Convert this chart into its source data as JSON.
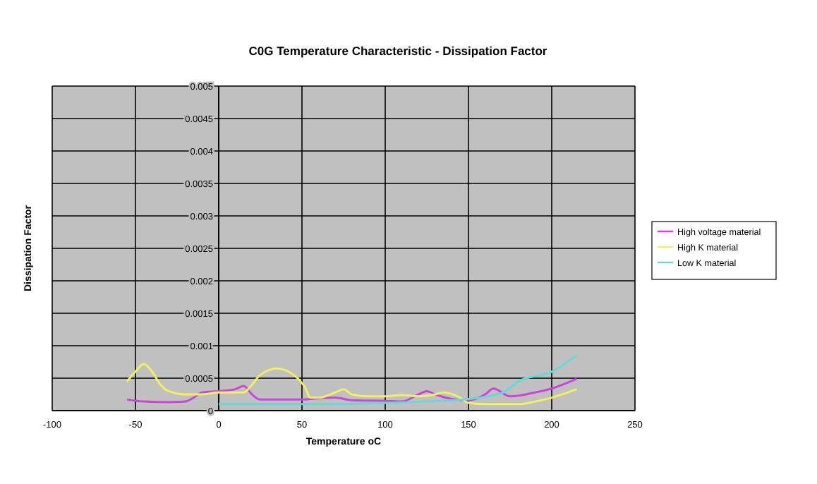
{
  "chart_data": {
    "type": "line",
    "title": "C0G Temperature Characteristic - Dissipation Factor",
    "xlabel": "Temperature oC",
    "ylabel": "Dissipation Factor",
    "xlim": [
      -100,
      250
    ],
    "xticks": [
      -100,
      -50,
      0,
      50,
      100,
      150,
      200,
      250
    ],
    "ylim": [
      0,
      0.005
    ],
    "yticks": [
      0,
      0.0005,
      0.001,
      0.0015,
      0.002,
      0.0025,
      0.003,
      0.0035,
      0.004,
      0.0045,
      0.005
    ],
    "grid": true,
    "legend": "right",
    "marker": "none",
    "line_style": "solid",
    "series": [
      {
        "name": "High voltage material",
        "color": "#cc44dd",
        "x": [
          -55,
          -45,
          -30,
          -20,
          -15,
          -10,
          0,
          10,
          15,
          20,
          25,
          35,
          50,
          60,
          70,
          80,
          100,
          110,
          120,
          125,
          130,
          140,
          150,
          160,
          165,
          175,
          190,
          200,
          215
        ],
        "values": [
          0.00017,
          0.00014,
          0.00013,
          0.00014,
          0.0002,
          0.00028,
          0.0003,
          0.00033,
          0.00038,
          0.00025,
          0.00017,
          0.00017,
          0.00017,
          0.00019,
          0.0002,
          0.00016,
          0.00015,
          0.00014,
          0.00025,
          0.0003,
          0.00025,
          0.00018,
          0.00016,
          0.00025,
          0.00034,
          0.00022,
          0.00028,
          0.00034,
          0.00049
        ]
      },
      {
        "name": "High K material",
        "color": "#f0f060",
        "x": [
          -55,
          -50,
          -45,
          -40,
          -35,
          -30,
          -20,
          -10,
          0,
          10,
          15,
          20,
          25,
          35,
          45,
          52,
          55,
          60,
          70,
          75,
          80,
          90,
          100,
          110,
          120,
          130,
          135,
          145,
          150,
          160,
          180,
          190,
          200,
          215
        ],
        "values": [
          0.00045,
          0.0006,
          0.00072,
          0.0006,
          0.0004,
          0.0003,
          0.00025,
          0.00025,
          0.00028,
          0.00028,
          0.00028,
          0.0004,
          0.00055,
          0.00065,
          0.00055,
          0.00035,
          0.0002,
          0.0002,
          0.00028,
          0.00033,
          0.00025,
          0.00022,
          0.00022,
          0.00024,
          0.00022,
          0.00025,
          0.00028,
          0.0002,
          0.00012,
          0.0001,
          0.0001,
          0.00014,
          0.0002,
          0.00033
        ]
      },
      {
        "name": "Low K material",
        "color": "#66d8d8",
        "x": [
          0,
          20,
          50,
          100,
          150,
          170,
          180,
          200,
          215
        ],
        "values": [
          0.0001,
          0.0001,
          0.0001,
          0.00012,
          0.00018,
          0.00027,
          0.00045,
          0.0006,
          0.00085
        ]
      }
    ]
  }
}
